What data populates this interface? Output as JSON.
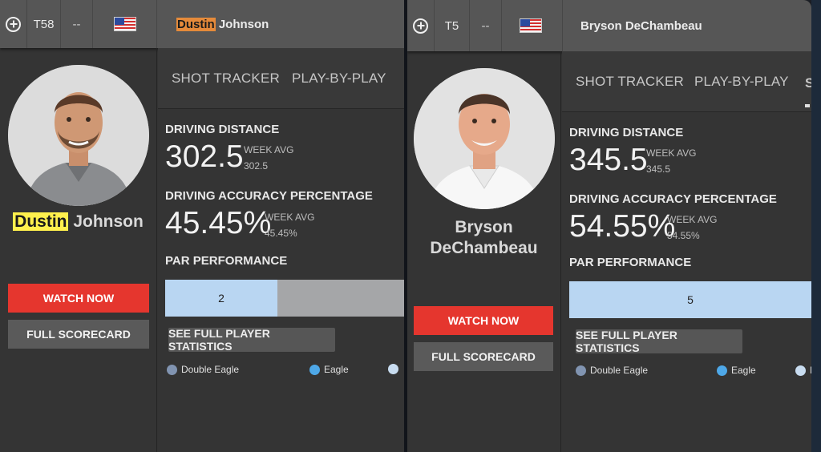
{
  "players": [
    {
      "position": "T58",
      "score": "--",
      "first_name": "Dustin",
      "last_name": "Johnson",
      "header_first": "Dustin",
      "header_last": "Johnson",
      "tabs": [
        "SHOT TRACKER",
        "PLAY-BY-PLAY"
      ],
      "driving_distance": {
        "label": "DRIVING DISTANCE",
        "value": "302.5",
        "week_label": "WEEK AVG",
        "week_value": "302.5"
      },
      "driving_accuracy": {
        "label": "DRIVING ACCURACY PERCENTAGE",
        "value": "45.45%",
        "week_label": "WEEK AVG",
        "week_value": "45.45%"
      },
      "par_performance": {
        "label": "PAR PERFORMANCE",
        "bars": [
          {
            "value": "2",
            "share": 0.47
          }
        ]
      },
      "watch_label": "WATCH NOW",
      "scorecard_label": "FULL SCORECARD",
      "stats_button_label": "SEE FULL PLAYER STATISTICS",
      "legend": [
        {
          "label": "Double Eagle",
          "color": "#8194b1"
        },
        {
          "label": "Eagle",
          "color": "#4ea8e8"
        },
        {
          "label": "",
          "color": "#c8dcf0"
        }
      ]
    },
    {
      "position": "T5",
      "score": "--",
      "name_line1": "Bryson",
      "name_line2": "DeChambeau",
      "header_name": "Bryson DeChambeau",
      "tabs": [
        "SHOT TRACKER",
        "PLAY-BY-PLAY",
        "S"
      ],
      "driving_distance": {
        "label": "DRIVING DISTANCE",
        "value": "345.5",
        "week_label": "WEEK AVG",
        "week_value": "345.5"
      },
      "driving_accuracy": {
        "label": "DRIVING ACCURACY PERCENTAGE",
        "value": "54.55%",
        "week_label": "WEEK AVG",
        "week_value": "54.55%"
      },
      "par_performance": {
        "label": "PAR PERFORMANCE",
        "bars": [
          {
            "value": "5",
            "share": 1.0
          }
        ]
      },
      "watch_label": "WATCH NOW",
      "scorecard_label": "FULL SCORECARD",
      "stats_button_label": "SEE FULL PLAYER STATISTICS",
      "legend": [
        {
          "label": "Double Eagle",
          "color": "#8194b1"
        },
        {
          "label": "Eagle",
          "color": "#4ea8e8"
        },
        {
          "label": "Bi",
          "color": "#c8dcf0"
        }
      ]
    }
  ],
  "colors": {
    "watch_button": "#e5362e",
    "panel_bg": "#343434",
    "topbar_bg": "#565656",
    "par_fill": "#b9d6f2",
    "par_track": "#a5a6a8"
  }
}
